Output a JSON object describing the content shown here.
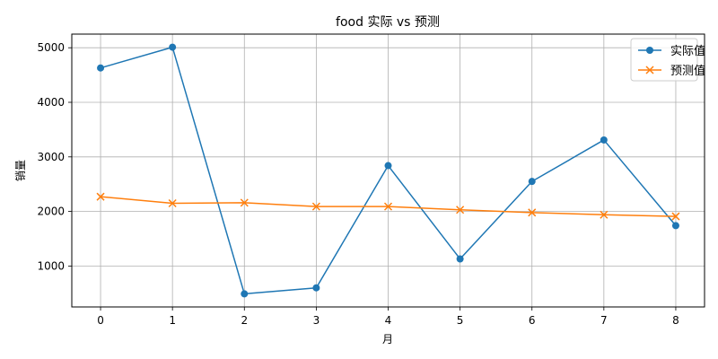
{
  "chart_data": {
    "type": "line",
    "title": "food 实际 vs 预测",
    "xlabel": "月",
    "ylabel": "销量",
    "x": [
      0,
      1,
      2,
      3,
      4,
      5,
      6,
      7,
      8
    ],
    "xlim": [
      -0.4,
      8.4
    ],
    "ylim": [
      250,
      5250
    ],
    "xticks": [
      0,
      1,
      2,
      3,
      4,
      5,
      6,
      7,
      8
    ],
    "yticks": [
      1000,
      2000,
      3000,
      4000,
      5000
    ],
    "grid": true,
    "legend_position": "top-right",
    "series": [
      {
        "name": "实际值",
        "color": "#1f77b4",
        "marker": "circle",
        "values": [
          4630,
          5010,
          490,
          600,
          2840,
          1130,
          2550,
          3310,
          1740
        ]
      },
      {
        "name": "预测值",
        "color": "#ff7f0e",
        "marker": "x",
        "values": [
          2270,
          2150,
          2160,
          2090,
          2090,
          2030,
          1980,
          1940,
          1910
        ]
      }
    ]
  }
}
